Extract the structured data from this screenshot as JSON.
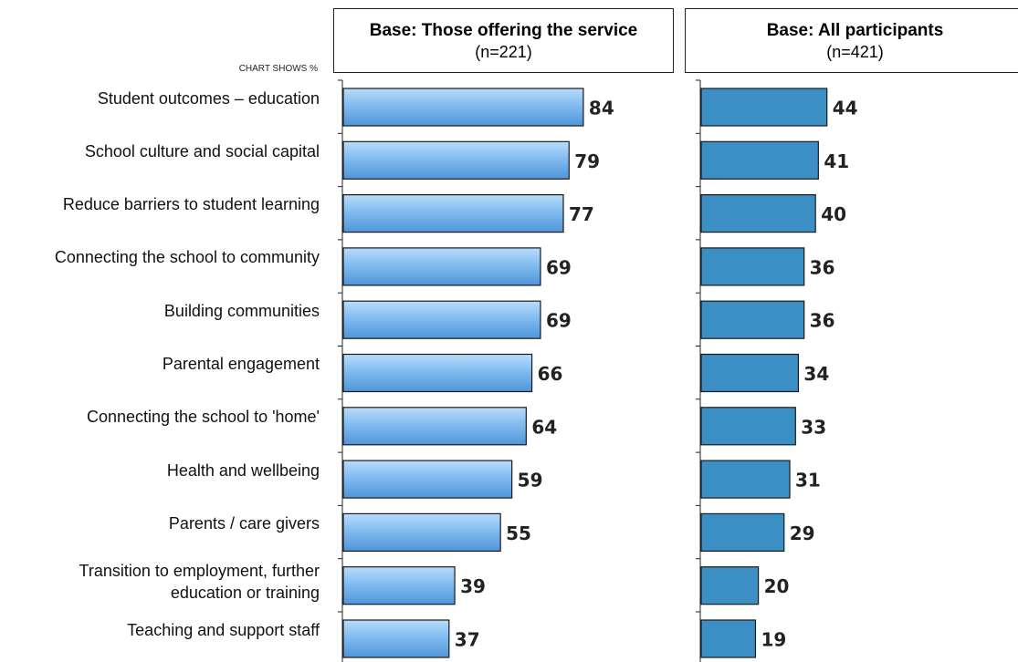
{
  "chart_data": {
    "type": "bar",
    "orientation": "horizontal",
    "unit_note": "CHART SHOWS %",
    "categories": [
      "Student outcomes – education",
      "School culture and social capital",
      "Reduce barriers to student learning",
      "Connecting the school to community",
      "Building communities",
      "Parental engagement",
      "Connecting the school to 'home'",
      "Health and wellbeing",
      "Parents / care givers",
      [
        "Transition to employment, further",
        "education or training"
      ],
      "Teaching and support staff"
    ],
    "panels": [
      {
        "header": "Base: Those offering the service",
        "base": "(n=221)",
        "values": [
          84,
          79,
          77,
          69,
          69,
          66,
          64,
          59,
          55,
          39,
          37
        ],
        "color": "#7fb6ec"
      },
      {
        "header": "Base: All participants",
        "base": "(n=421)",
        "values": [
          44,
          41,
          40,
          36,
          36,
          34,
          33,
          31,
          29,
          20,
          19
        ],
        "color": "#3b8fc4"
      }
    ]
  }
}
